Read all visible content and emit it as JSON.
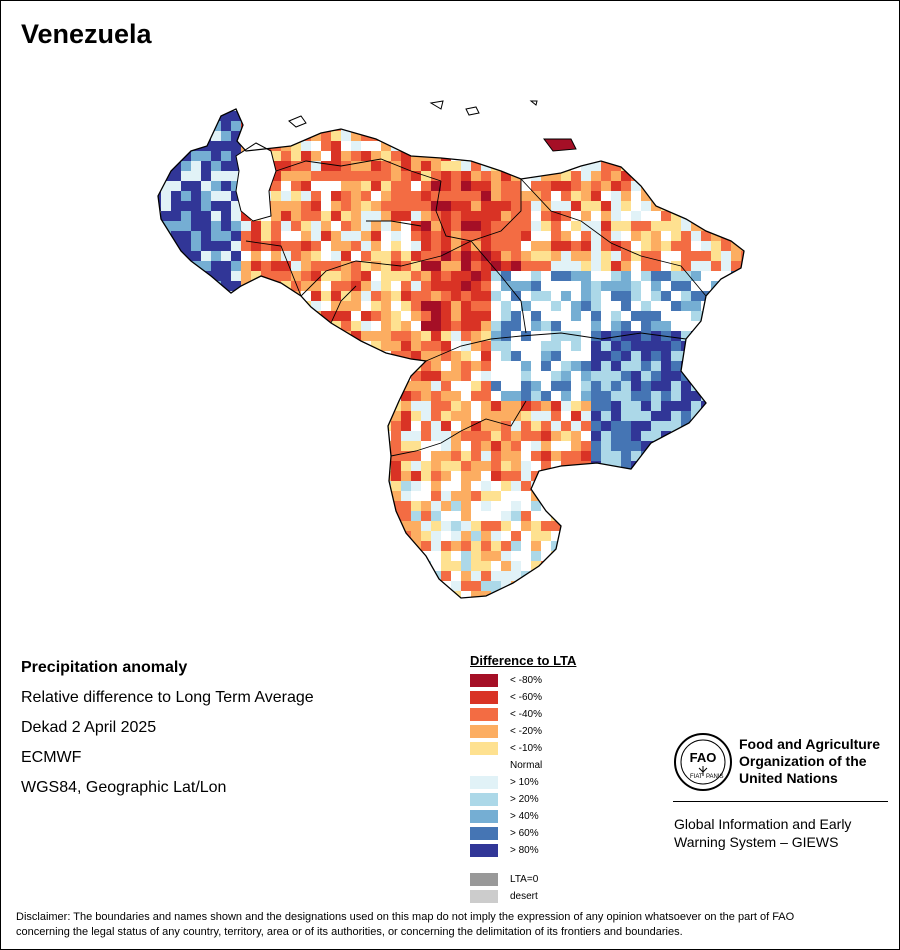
{
  "title": "Venezuela",
  "info": {
    "heading": "Precipitation anomaly",
    "subtitle": "Relative difference to Long Term Average",
    "period": "Dekad 2 April 2025",
    "source": "ECMWF",
    "projection": "WGS84, Geographic Lat/Lon"
  },
  "legend": {
    "title": "Difference to LTA",
    "classes": [
      {
        "label": "< -80%",
        "color": "#a50f26"
      },
      {
        "label": "< -60%",
        "color": "#d93325"
      },
      {
        "label": "< -40%",
        "color": "#f36c43"
      },
      {
        "label": "< -20%",
        "color": "#fcad61"
      },
      {
        "label": "< -10%",
        "color": "#fee190"
      },
      {
        "label": "Normal",
        "color": "#ffffff"
      },
      {
        "label": "> 10%",
        "color": "#e1f2f7"
      },
      {
        "label": "> 20%",
        "color": "#acd8e8"
      },
      {
        "label": "> 40%",
        "color": "#75aed3"
      },
      {
        "label": "> 60%",
        "color": "#4575b4"
      },
      {
        "label": "> 80%",
        "color": "#313697"
      }
    ],
    "extra": [
      {
        "label": "LTA=0",
        "color": "#999999"
      },
      {
        "label": "desert",
        "color": "#cccccc"
      }
    ]
  },
  "organization": {
    "name_line1": "Food and Agriculture",
    "name_line2": "Organization of the",
    "name_line3": "United Nations",
    "logo_text": "FAO",
    "logo_motto_left": "FIAT",
    "logo_motto_right": "PANIS",
    "system_line1": "Global Information and Early",
    "system_line2": "Warning System – GIEWS"
  },
  "disclaimer_line1": "Disclaimer: The boundaries and names shown and the designations used on this map do not imply the expression of any opinion whatsoever on the part of FAO",
  "disclaimer_line2": "concerning the legal status of any country, territory, area or of its authorities, or concerning the delimitation of its frontiers and boundaries."
}
